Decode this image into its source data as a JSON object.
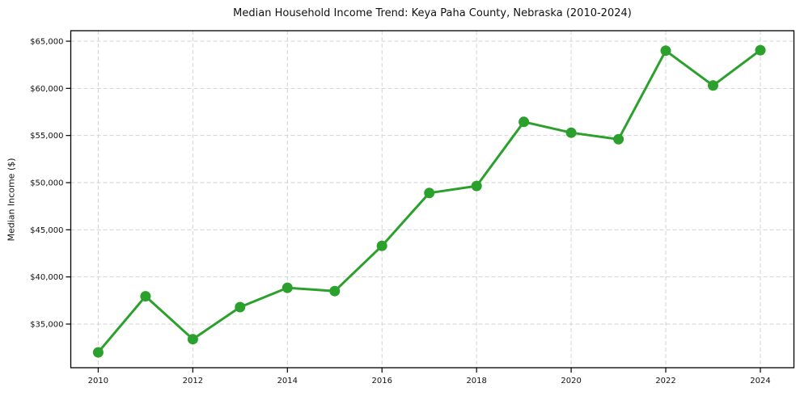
{
  "chart_data": {
    "type": "line",
    "title": "Median Household Income Trend: Keya Paha County, Nebraska (2010-2024)",
    "xlabel": "",
    "ylabel": "Median Income ($)",
    "x": [
      2010,
      2011,
      2012,
      2013,
      2014,
      2015,
      2016,
      2017,
      2018,
      2019,
      2020,
      2021,
      2022,
      2023,
      2024
    ],
    "values": [
      32000,
      37950,
      33400,
      36800,
      38850,
      38500,
      43300,
      48900,
      49650,
      56450,
      55300,
      54600,
      64000,
      60300,
      64050
    ],
    "x_ticks": [
      {
        "value": 2010,
        "label": "2010"
      },
      {
        "value": 2012,
        "label": "2012"
      },
      {
        "value": 2014,
        "label": "2014"
      },
      {
        "value": 2016,
        "label": "2016"
      },
      {
        "value": 2018,
        "label": "2018"
      },
      {
        "value": 2020,
        "label": "2020"
      },
      {
        "value": 2022,
        "label": "2022"
      },
      {
        "value": 2024,
        "label": "2024"
      }
    ],
    "y_ticks": [
      {
        "value": 35000,
        "label": "$35,000"
      },
      {
        "value": 40000,
        "label": "$40,000"
      },
      {
        "value": 45000,
        "label": "$45,000"
      },
      {
        "value": 50000,
        "label": "$50,000"
      },
      {
        "value": 55000,
        "label": "$55,000"
      },
      {
        "value": 60000,
        "label": "$60,000"
      },
      {
        "value": 65000,
        "label": "$65,000"
      }
    ],
    "xlim": [
      2009.42,
      2024.71
    ],
    "ylim": [
      30370,
      66115
    ],
    "grid": true,
    "grid_style": "dashed",
    "legend": "none",
    "colors": {
      "line": "#2ca02c",
      "marker": "#2ca02c",
      "grid": "#d3d3d3",
      "axis_border": "#000000",
      "text": "#111111",
      "background": "#ffffff"
    },
    "marker": "circle",
    "marker_radius": 6.5,
    "line_width": 3
  }
}
